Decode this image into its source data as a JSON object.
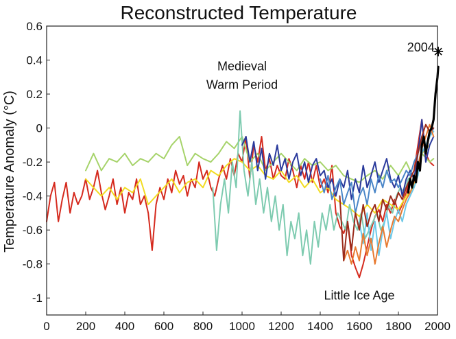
{
  "chart_data": {
    "type": "line",
    "title": "Reconstructed Temperature",
    "xlabel": "",
    "ylabel": "Temperature Anomaly (°C)",
    "xlim": [
      0,
      2000
    ],
    "ylim": [
      -1.1,
      0.6
    ],
    "xticks": [
      0,
      200,
      400,
      600,
      800,
      1000,
      1200,
      1400,
      1600,
      1800,
      2000
    ],
    "yticks": [
      0.6,
      0.4,
      0.2,
      0,
      -0.2,
      -0.4,
      -0.6,
      -0.8,
      -1
    ],
    "grid": false,
    "legend": "none",
    "annotations": [
      {
        "text": "Medieval",
        "x": 1000,
        "y": 0.34
      },
      {
        "text": "Warm Period",
        "x": 1000,
        "y": 0.23
      },
      {
        "text": "Little Ice Age",
        "x": 1600,
        "y": -1.01
      },
      {
        "text": "2004",
        "x": 1915,
        "y": 0.45
      }
    ],
    "series": [
      {
        "color": "#d52a1e",
        "x": [
          0,
          20,
          40,
          60,
          80,
          100,
          120,
          140,
          160,
          180,
          200,
          220,
          240,
          260,
          280,
          300,
          320,
          340,
          360,
          380,
          400,
          420,
          440,
          460,
          480,
          500,
          520,
          540,
          560,
          580,
          600,
          620,
          640,
          660,
          680,
          700,
          720,
          740,
          760,
          780,
          800,
          820,
          840,
          860,
          880,
          900,
          920,
          940,
          960,
          980,
          1000,
          1020,
          1040,
          1060,
          1080,
          1100,
          1120,
          1140,
          1160,
          1180,
          1200,
          1220,
          1240,
          1260,
          1280,
          1300,
          1320,
          1340,
          1360,
          1380,
          1400,
          1420,
          1440,
          1460,
          1480,
          1500,
          1520,
          1540,
          1560,
          1580,
          1600,
          1620,
          1640,
          1660,
          1680,
          1700,
          1720,
          1740,
          1760,
          1780,
          1800,
          1820,
          1840,
          1860,
          1880,
          1900,
          1920,
          1940,
          1960,
          1980
        ],
        "y": [
          -0.55,
          -0.4,
          -0.32,
          -0.55,
          -0.42,
          -0.32,
          -0.5,
          -0.38,
          -0.45,
          -0.4,
          -0.3,
          -0.42,
          -0.35,
          -0.25,
          -0.38,
          -0.48,
          -0.4,
          -0.3,
          -0.45,
          -0.35,
          -0.5,
          -0.38,
          -0.42,
          -0.3,
          -0.45,
          -0.4,
          -0.5,
          -0.72,
          -0.45,
          -0.35,
          -0.42,
          -0.3,
          -0.38,
          -0.25,
          -0.33,
          -0.28,
          -0.4,
          -0.3,
          -0.35,
          -0.2,
          -0.3,
          -0.25,
          -0.35,
          -0.4,
          -0.3,
          -0.22,
          -0.3,
          -0.18,
          -0.28,
          -0.15,
          -0.2,
          -0.05,
          -0.3,
          -0.1,
          -0.2,
          -0.05,
          -0.25,
          -0.18,
          -0.3,
          -0.22,
          -0.28,
          -0.3,
          -0.18,
          -0.25,
          -0.35,
          -0.22,
          -0.3,
          -0.2,
          -0.32,
          -0.22,
          -0.35,
          -0.3,
          -0.38,
          -0.22,
          -0.5,
          -0.58,
          -0.62,
          -0.55,
          -0.75,
          -0.82,
          -0.88,
          -0.8,
          -0.7,
          -0.6,
          -0.52,
          -0.48,
          -0.55,
          -0.45,
          -0.5,
          -0.42,
          -0.5,
          -0.45,
          -0.38,
          -0.3,
          -0.25,
          -0.1,
          0.05,
          -0.15,
          -0.2,
          -0.22
        ]
      },
      {
        "color": "#a6d36a",
        "x": [
          200,
          240,
          280,
          320,
          360,
          400,
          440,
          480,
          520,
          560,
          600,
          640,
          680,
          720,
          760,
          800,
          840,
          880,
          920,
          960,
          1000,
          1040,
          1080,
          1120,
          1160,
          1200,
          1240,
          1280,
          1320,
          1360,
          1400,
          1440,
          1480,
          1520,
          1560,
          1600,
          1640,
          1680,
          1720,
          1760,
          1800,
          1840,
          1880,
          1920,
          1960,
          1980
        ],
        "y": [
          -0.25,
          -0.15,
          -0.25,
          -0.18,
          -0.2,
          -0.15,
          -0.22,
          -0.18,
          -0.2,
          -0.15,
          -0.18,
          -0.1,
          -0.05,
          -0.22,
          -0.15,
          -0.18,
          -0.2,
          -0.15,
          -0.08,
          -0.12,
          -0.05,
          -0.2,
          -0.15,
          -0.25,
          -0.2,
          -0.15,
          -0.2,
          -0.25,
          -0.18,
          -0.22,
          -0.2,
          -0.25,
          -0.22,
          -0.28,
          -0.3,
          -0.32,
          -0.28,
          -0.25,
          -0.3,
          -0.22,
          -0.28,
          -0.2,
          -0.3,
          -0.15,
          -0.2,
          -0.18
        ]
      },
      {
        "color": "#f2dc22",
        "x": [
          200,
          240,
          280,
          320,
          360,
          400,
          440,
          480,
          520,
          560,
          600,
          640,
          680,
          720,
          760,
          800,
          840,
          880,
          920,
          960,
          1000,
          1040,
          1080,
          1120,
          1160,
          1200,
          1240,
          1280,
          1320,
          1360,
          1400,
          1440,
          1480,
          1520,
          1560,
          1600,
          1640,
          1680,
          1720,
          1760,
          1800,
          1840,
          1880,
          1920,
          1960
        ],
        "y": [
          -0.3,
          -0.35,
          -0.4,
          -0.35,
          -0.42,
          -0.35,
          -0.38,
          -0.3,
          -0.45,
          -0.4,
          -0.35,
          -0.3,
          -0.38,
          -0.32,
          -0.3,
          -0.35,
          -0.25,
          -0.28,
          -0.22,
          -0.18,
          -0.2,
          -0.25,
          -0.22,
          -0.28,
          -0.3,
          -0.25,
          -0.32,
          -0.28,
          -0.35,
          -0.3,
          -0.38,
          -0.35,
          -0.42,
          -0.45,
          -0.48,
          -0.52,
          -0.45,
          -0.5,
          -0.42,
          -0.45,
          -0.48,
          -0.4,
          -0.35,
          -0.15,
          -0.1
        ]
      },
      {
        "color": "#7ecbb0",
        "x": [
          850,
          870,
          890,
          910,
          930,
          950,
          970,
          990,
          1010,
          1030,
          1050,
          1070,
          1090,
          1110,
          1130,
          1150,
          1170,
          1190,
          1210,
          1230,
          1250,
          1270,
          1290,
          1310,
          1330,
          1350,
          1370,
          1390,
          1410,
          1430,
          1450,
          1470,
          1490,
          1510,
          1530,
          1550,
          1570,
          1590,
          1610,
          1630,
          1650,
          1670,
          1690,
          1710,
          1730,
          1750,
          1770,
          1790,
          1810,
          1830,
          1850,
          1870
        ],
        "y": [
          -0.35,
          -0.72,
          -0.45,
          -0.3,
          -0.5,
          -0.2,
          -0.35,
          0.1,
          -0.25,
          -0.4,
          -0.2,
          -0.45,
          -0.3,
          -0.5,
          -0.35,
          -0.55,
          -0.4,
          -0.6,
          -0.45,
          -0.75,
          -0.55,
          -0.65,
          -0.5,
          -0.75,
          -0.6,
          -0.8,
          -0.55,
          -0.7,
          -0.5,
          -0.6,
          -0.45,
          -0.6,
          -0.5,
          -0.55,
          -0.6,
          -0.45,
          -0.55,
          -0.6,
          -0.5,
          -0.65,
          -0.6,
          -0.55,
          -0.5,
          -0.6,
          -0.55,
          -0.45,
          -0.5,
          -0.4,
          -0.35,
          -0.38,
          -0.3,
          -0.28
        ]
      },
      {
        "color": "#2a3a9c",
        "x": [
          1000,
          1020,
          1040,
          1060,
          1080,
          1100,
          1120,
          1140,
          1160,
          1180,
          1200,
          1220,
          1240,
          1260,
          1280,
          1300,
          1320,
          1340,
          1360,
          1380,
          1400,
          1420,
          1440,
          1460,
          1480,
          1500,
          1520,
          1540,
          1560,
          1580,
          1600,
          1620,
          1640,
          1660,
          1680,
          1700,
          1720,
          1740,
          1760,
          1780,
          1800,
          1820,
          1840,
          1860,
          1880,
          1900,
          1920,
          1940,
          1960,
          1980
        ],
        "y": [
          -0.1,
          -0.05,
          -0.2,
          -0.08,
          -0.25,
          -0.12,
          -0.3,
          -0.15,
          -0.22,
          -0.1,
          -0.25,
          -0.18,
          -0.3,
          -0.2,
          -0.15,
          -0.28,
          -0.2,
          -0.32,
          -0.22,
          -0.18,
          -0.28,
          -0.25,
          -0.35,
          -0.3,
          -0.4,
          -0.3,
          -0.35,
          -0.25,
          -0.42,
          -0.3,
          -0.38,
          -0.22,
          -0.35,
          -0.28,
          -0.2,
          -0.32,
          -0.25,
          -0.18,
          -0.3,
          -0.35,
          -0.28,
          -0.4,
          -0.3,
          -0.25,
          -0.3,
          -0.15,
          0.05,
          -0.2,
          -0.1,
          -0.05
        ]
      },
      {
        "color": "#4a86c8",
        "x": [
          1400,
          1420,
          1440,
          1460,
          1480,
          1500,
          1520,
          1540,
          1560,
          1580,
          1600,
          1620,
          1640,
          1660,
          1680,
          1700,
          1720,
          1740,
          1760,
          1780,
          1800,
          1820,
          1840,
          1860,
          1880,
          1900,
          1920,
          1940,
          1960,
          1980
        ],
        "y": [
          -0.3,
          -0.38,
          -0.28,
          -0.42,
          -0.35,
          -0.3,
          -0.45,
          -0.38,
          -0.32,
          -0.5,
          -0.4,
          -0.35,
          -0.45,
          -0.3,
          -0.38,
          -0.28,
          -0.35,
          -0.25,
          -0.32,
          -0.3,
          -0.35,
          -0.3,
          -0.25,
          -0.28,
          -0.2,
          -0.15,
          -0.08,
          -0.12,
          -0.05,
          0.0
        ]
      },
      {
        "color": "#6cc8e8",
        "x": [
          1600,
          1620,
          1640,
          1660,
          1680,
          1700,
          1720,
          1740,
          1760,
          1780,
          1800,
          1820,
          1840,
          1860,
          1880,
          1900,
          1920,
          1940,
          1960,
          1980
        ],
        "y": [
          -0.55,
          -0.68,
          -0.5,
          -0.72,
          -0.55,
          -0.75,
          -0.6,
          -0.5,
          -0.65,
          -0.55,
          -0.48,
          -0.55,
          -0.45,
          -0.4,
          -0.35,
          -0.28,
          -0.15,
          -0.1,
          -0.05,
          -0.02
        ]
      },
      {
        "color": "#e87a30",
        "x": [
          1520,
          1540,
          1560,
          1580,
          1600,
          1620,
          1640,
          1660,
          1680,
          1700,
          1720,
          1740,
          1760,
          1780,
          1800,
          1820,
          1840,
          1860,
          1880,
          1900,
          1920,
          1940,
          1960,
          1980
        ],
        "y": [
          -0.78,
          -0.72,
          -0.8,
          -0.7,
          -0.78,
          -0.62,
          -0.75,
          -0.65,
          -0.8,
          -0.68,
          -0.58,
          -0.7,
          -0.6,
          -0.52,
          -0.55,
          -0.48,
          -0.42,
          -0.38,
          -0.32,
          -0.22,
          -0.12,
          -0.05,
          0.02,
          -0.05
        ]
      },
      {
        "color": "#9a2a1a",
        "x": [
          1500,
          1520,
          1540,
          1560,
          1580,
          1600,
          1620,
          1640,
          1660,
          1680,
          1700,
          1720,
          1740,
          1760,
          1780,
          1800,
          1820,
          1840,
          1860,
          1880,
          1900,
          1920,
          1940,
          1960,
          1980
        ],
        "y": [
          -0.4,
          -0.78,
          -0.55,
          -0.72,
          -0.5,
          -0.6,
          -0.45,
          -0.58,
          -0.5,
          -0.45,
          -0.55,
          -0.42,
          -0.48,
          -0.4,
          -0.45,
          -0.38,
          -0.42,
          -0.35,
          -0.3,
          -0.25,
          -0.15,
          -0.05,
          0.02,
          -0.02,
          0.0
        ]
      },
      {
        "color": "#000000",
        "width": 3.2,
        "x": [
          1850,
          1860,
          1870,
          1880,
          1890,
          1900,
          1910,
          1920,
          1930,
          1940,
          1950,
          1960,
          1970,
          1980,
          1990,
          2000,
          2004
        ],
        "y": [
          -0.38,
          -0.3,
          -0.35,
          -0.28,
          -0.32,
          -0.2,
          -0.25,
          -0.1,
          -0.05,
          -0.15,
          -0.08,
          -0.02,
          0.0,
          0.05,
          0.2,
          0.3,
          0.36
        ]
      }
    ],
    "star_marker": {
      "x": 2004,
      "y": 0.45
    }
  }
}
